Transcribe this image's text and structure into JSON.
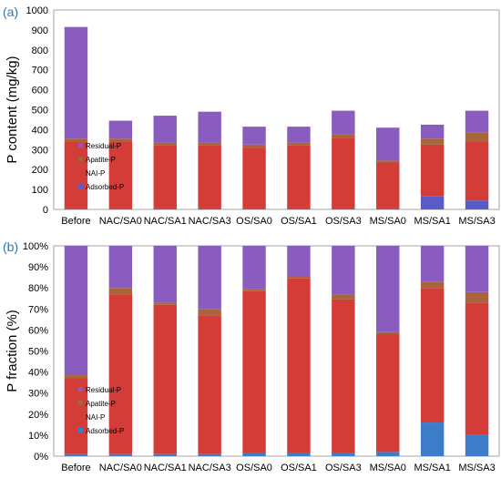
{
  "chart_data": [
    {
      "panel": "(a)",
      "type": "bar",
      "stacked": true,
      "ylabel": "P content (mg/kg)",
      "ylim": [
        0,
        1000
      ],
      "yticks": [
        0,
        100,
        200,
        300,
        400,
        500,
        600,
        700,
        800,
        900,
        1000
      ],
      "grid": false,
      "legend_position": "bottom-left",
      "categories": [
        "Before",
        "NAC/SA0",
        "NAC/SA1",
        "NAC/SA3",
        "OS/SA0",
        "OS/SA1",
        "OS/SA3",
        "MS/SA0",
        "MS/SA1",
        "MS/SA3"
      ],
      "series": [
        {
          "name": "Adsorbed-P",
          "color": "#5b5bc7",
          "values": [
            5,
            5,
            5,
            5,
            5,
            5,
            5,
            5,
            65,
            45
          ]
        },
        {
          "name": "NAI-P",
          "color": "#d43c38",
          "values": [
            335,
            335,
            315,
            315,
            305,
            315,
            355,
            230,
            260,
            295
          ]
        },
        {
          "name": "Apatite-P",
          "color": "#a8643a",
          "values": [
            15,
            15,
            15,
            15,
            15,
            15,
            15,
            10,
            30,
            45
          ]
        },
        {
          "name": "Residual-P",
          "color": "#8a5cc0",
          "values": [
            560,
            90,
            135,
            155,
            90,
            80,
            120,
            165,
            70,
            110
          ]
        }
      ],
      "legend_order": [
        "Residual-P",
        "Apatite-P",
        "NAI-P",
        "Adsorbed-P"
      ]
    },
    {
      "panel": "(b)",
      "type": "bar",
      "stacked": true,
      "ylabel": "P fraction (%)",
      "ylim": [
        0,
        100
      ],
      "yticks": [
        "0%",
        "10%",
        "20%",
        "30%",
        "40%",
        "50%",
        "60%",
        "70%",
        "80%",
        "90%",
        "100%"
      ],
      "grid": false,
      "legend_position": "bottom-left",
      "categories": [
        "Before",
        "NAC/SA0",
        "NAC/SA1",
        "NAC/SA3",
        "OS/SA0",
        "OS/SA1",
        "OS/SA3",
        "MS/SA0",
        "MS/SA1",
        "MS/SA3"
      ],
      "series": [
        {
          "name": "Adsorbed-P",
          "color": "#3d7cc9",
          "values": [
            1,
            1,
            1,
            1,
            1.5,
            1.5,
            1.5,
            2,
            16,
            10
          ]
        },
        {
          "name": "NAI-P",
          "color": "#d43c38",
          "values": [
            36,
            76,
            71,
            66,
            77,
            83,
            73,
            56,
            64,
            63
          ]
        },
        {
          "name": "Apatite-P",
          "color": "#a8643a",
          "values": [
            1.5,
            3,
            1,
            3,
            1,
            1,
            2.5,
            1,
            3,
            5
          ]
        },
        {
          "name": "Residual-P",
          "color": "#8a5cc0",
          "values": [
            61.5,
            20,
            27,
            30,
            20.5,
            14.5,
            23,
            41,
            17,
            22
          ]
        }
      ],
      "legend": [
        "Residual-P",
        "Apatite-P",
        "NAI-P",
        "Adsorbed-P"
      ]
    }
  ]
}
